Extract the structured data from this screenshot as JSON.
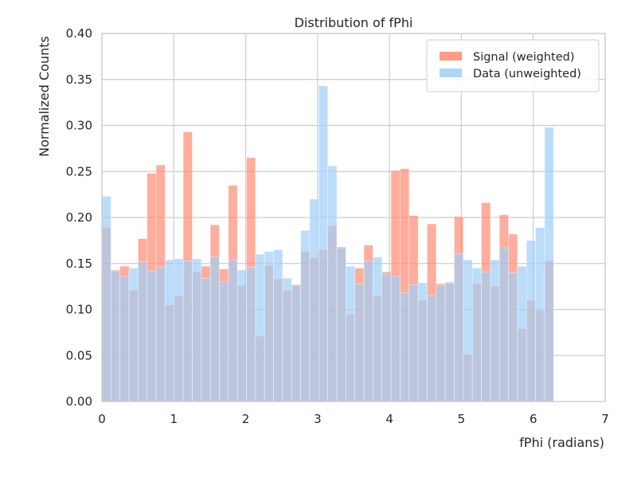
{
  "chart_data": {
    "type": "bar",
    "title": "Distribution of fPhi",
    "xlabel": "fPhi (radians)",
    "ylabel": "Normalized Counts",
    "xlim": [
      0,
      7
    ],
    "ylim": [
      0,
      0.4
    ],
    "x_ticks": [
      "0",
      "1",
      "2",
      "3",
      "4",
      "5",
      "6",
      "7"
    ],
    "y_ticks": [
      "0.00",
      "0.05",
      "0.10",
      "0.15",
      "0.20",
      "0.25",
      "0.30",
      "0.35",
      "0.40"
    ],
    "grid": true,
    "legend_position": "top-right",
    "bins": {
      "start": 0,
      "end": 6.2832,
      "count": 50
    },
    "series": [
      {
        "name": "Signal (weighted)",
        "color": "#ff8a72",
        "values": [
          0.189,
          0.143,
          0.147,
          0.121,
          0.177,
          0.248,
          0.257,
          0.105,
          0.115,
          0.293,
          0.141,
          0.147,
          0.192,
          0.144,
          0.235,
          0.126,
          0.265,
          0.071,
          0.148,
          0.133,
          0.121,
          0.127,
          0.163,
          0.156,
          0.165,
          0.191,
          0.168,
          0.095,
          0.145,
          0.17,
          0.115,
          0.141,
          0.251,
          0.253,
          0.202,
          0.11,
          0.193,
          0.128,
          0.128,
          0.201,
          0.051,
          0.128,
          0.216,
          0.125,
          0.203,
          0.182,
          0.079,
          0.11,
          0.099,
          0.153
        ]
      },
      {
        "name": "Data (unweighted)",
        "color": "#a0cff8",
        "values": [
          0.223,
          0.142,
          0.136,
          0.145,
          0.152,
          0.142,
          0.146,
          0.154,
          0.155,
          0.153,
          0.155,
          0.134,
          0.157,
          0.13,
          0.154,
          0.143,
          0.146,
          0.16,
          0.163,
          0.165,
          0.134,
          0.126,
          0.186,
          0.22,
          0.343,
          0.256,
          0.167,
          0.147,
          0.128,
          0.153,
          0.157,
          0.139,
          0.136,
          0.118,
          0.127,
          0.129,
          0.115,
          0.126,
          0.13,
          0.161,
          0.154,
          0.145,
          0.141,
          0.154,
          0.167,
          0.14,
          0.147,
          0.175,
          0.189,
          0.298
        ]
      }
    ]
  }
}
